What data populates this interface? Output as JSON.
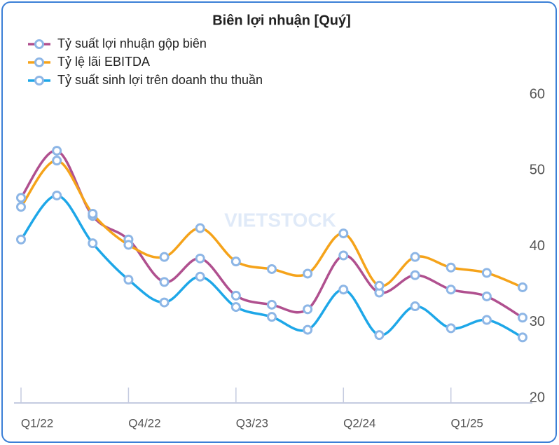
{
  "chart_data": {
    "type": "line",
    "title": "Biên lợi nhuận [Quý]",
    "watermark": "VIETSTOCK",
    "categories": [
      "Q1/22",
      null,
      null,
      "Q4/22",
      null,
      null,
      "Q3/23",
      null,
      null,
      "Q2/24",
      null,
      null,
      "Q1/25",
      null,
      null
    ],
    "series": [
      {
        "name": "Tỷ suất lợi nhuận gộp biên",
        "color": "#b0508f",
        "values": [
          46.4,
          52.6,
          44.0,
          40.9,
          35.3,
          38.4,
          33.5,
          32.3,
          31.7,
          38.8,
          33.9,
          36.2,
          34.3,
          33.4,
          30.6
        ]
      },
      {
        "name": "Tỷ lệ lãi EBITDA",
        "color": "#f5a31a",
        "values": [
          45.2,
          51.3,
          44.3,
          40.2,
          38.6,
          42.4,
          38.0,
          37.0,
          36.4,
          41.7,
          34.8,
          38.6,
          37.2,
          36.5,
          34.6
        ]
      },
      {
        "name": "Tỷ suất sinh lợi trên doanh thu thuần",
        "color": "#1ea7e8",
        "values": [
          40.9,
          46.7,
          40.4,
          35.6,
          32.6,
          36.0,
          32.0,
          30.7,
          29.0,
          34.3,
          28.3,
          32.1,
          29.2,
          30.3,
          28.0
        ]
      }
    ],
    "ylim": [
      20,
      60
    ],
    "yticks": [
      20,
      30,
      40,
      50,
      60
    ],
    "y_axis_side": "right",
    "legend": "top-left",
    "marker_color": "#8db6e6"
  }
}
